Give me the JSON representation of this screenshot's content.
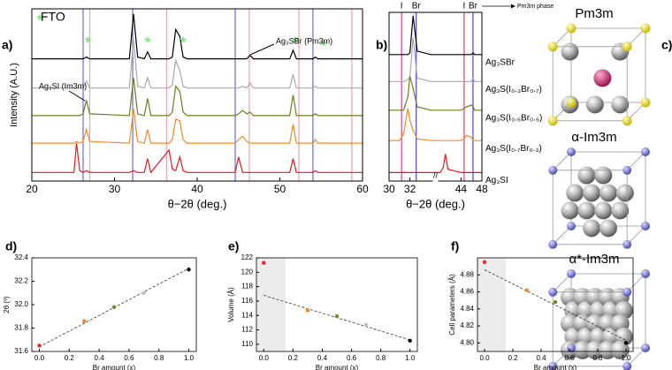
{
  "chart_data": [
    {
      "type": "line",
      "label": "a)",
      "ylabel": "Intensity (A.U.)",
      "xlabel": "θ−2θ (deg.)",
      "xlim": [
        20,
        60
      ],
      "xticks": [
        20,
        30,
        40,
        50,
        60
      ],
      "ylim": [
        0,
        100
      ],
      "x": [
        20,
        25.1,
        25.4,
        25.8,
        26.2,
        26.6,
        27.0,
        31.8,
        32.3,
        32.8,
        33.6,
        34.0,
        34.4,
        36.6,
        37.0,
        37.4,
        37.9,
        38.3,
        38.8,
        44.6,
        45.0,
        45.5,
        46.0,
        46.4,
        46.8,
        51.2,
        51.6,
        52.0,
        54.0,
        54.3,
        54.6,
        60
      ],
      "series": [
        {
          "color": "#000000",
          "values": [
            71,
            71,
            71,
            71,
            71,
            72,
            71,
            71,
            97,
            72,
            71,
            75,
            71,
            71,
            72,
            88,
            84,
            72,
            71,
            71,
            71,
            71,
            71,
            73,
            71,
            71,
            76,
            71,
            71,
            72,
            71,
            71
          ]
        },
        {
          "color": "#a9a9a9",
          "values": [
            54,
            54,
            54,
            54,
            54,
            58,
            54,
            54,
            82,
            55,
            54,
            60,
            54,
            54,
            56,
            70,
            64,
            55,
            54,
            54,
            54,
            55,
            54,
            57,
            54,
            54,
            62,
            54,
            54,
            55,
            54,
            54
          ]
        },
        {
          "color": "#6b7d1a",
          "values": [
            38,
            38,
            38,
            38,
            39,
            47,
            39,
            38,
            60,
            39,
            38,
            48,
            38,
            38,
            40,
            55,
            52,
            40,
            38,
            38,
            39,
            41,
            39,
            40,
            38,
            38,
            50,
            38,
            38,
            39,
            38,
            38
          ]
        },
        {
          "color": "#f08a24",
          "values": [
            22,
            22,
            23,
            22,
            23,
            30,
            23,
            22,
            42,
            23,
            22,
            30,
            22,
            22,
            24,
            36,
            35,
            24,
            22,
            22,
            24,
            26,
            23,
            22,
            22,
            22,
            33,
            22,
            22,
            24,
            22,
            22
          ]
        },
        {
          "color": "#e8161b",
          "values": [
            5,
            5,
            22,
            6,
            5,
            6,
            5,
            5,
            6,
            5,
            5,
            13,
            5,
            18,
            7,
            6,
            14,
            6,
            5,
            5,
            14,
            5,
            5,
            5,
            5,
            5,
            13,
            5,
            5,
            6,
            5,
            5
          ]
        }
      ],
      "vlines": [
        {
          "x": 26.2,
          "color": "#6a6ae0"
        },
        {
          "x": 27.0,
          "color": "#f3a0b0"
        },
        {
          "x": 32.2,
          "color": "#6a6ae0"
        },
        {
          "x": 36.3,
          "color": "#f3a0b0"
        },
        {
          "x": 44.6,
          "color": "#6a6ae0"
        },
        {
          "x": 46.3,
          "color": "#f3a0b0"
        },
        {
          "x": 52.3,
          "color": "#f3a0b0"
        },
        {
          "x": 54.0,
          "color": "#6a6ae0"
        },
        {
          "x": 58.7,
          "color": "#f3a0b0"
        }
      ],
      "markers": {
        "color": "#8ee68e",
        "x": [
          21,
          26.8,
          34,
          38.3,
          51.9,
          55.3
        ],
        "y": [
          95,
          82,
          82,
          82,
          82,
          80
        ]
      },
      "annotations": [
        {
          "text": "FTO",
          "color": "#000000"
        },
        {
          "text": "Ag₃SBr (Pm3m)",
          "color": "#1f3aa0"
        },
        {
          "text": "Ag₃SI (Im3m)",
          "color": "#e8161b"
        }
      ]
    },
    {
      "type": "line",
      "label": "b)",
      "xlabel": "θ−2θ (deg.)",
      "xlim": [
        30,
        48
      ],
      "xbreak": [
        34,
        40
      ],
      "xticks": [
        30,
        32,
        44,
        48
      ],
      "ylim": [
        0,
        100
      ],
      "x": [
        30,
        31.0,
        31.4,
        31.8,
        32.0,
        32.3,
        32.7,
        34,
        40,
        40.6,
        41,
        41.5,
        44,
        44.6,
        45,
        46.0,
        46.3,
        46.6,
        48
      ],
      "series": [
        {
          "name": "Ag₃SBr",
          "color": "#000000",
          "values": [
            75,
            75,
            75,
            75,
            76,
            98,
            77,
            75,
            75,
            75,
            75,
            75,
            75,
            75,
            75,
            75,
            76,
            75,
            75
          ]
        },
        {
          "name": "Ag₃S(I₀.₃Br₀.₇)",
          "color": "#a9a9a9",
          "values": [
            59,
            59,
            59,
            60,
            62,
            85,
            61,
            59,
            59,
            59,
            59,
            59,
            59,
            59,
            59,
            59,
            61,
            59,
            59
          ]
        },
        {
          "name": "Ag₃S(I₀.₅Br₀.₅)",
          "color": "#6b7d1a",
          "values": [
            42,
            42,
            42,
            50,
            62,
            55,
            44,
            42,
            42,
            42,
            42,
            42,
            42,
            43,
            44,
            45,
            44,
            42,
            42
          ]
        },
        {
          "name": "Ag₃S(I₀.₇Br₀.₃)",
          "color": "#f08a24",
          "values": [
            24,
            24,
            28,
            43,
            36,
            30,
            25,
            24,
            24,
            24,
            24,
            24,
            24,
            25,
            27,
            26,
            24,
            24,
            24
          ]
        },
        {
          "name": "Ag₃SI",
          "color": "#e8161b",
          "values": [
            5,
            5,
            5,
            5,
            5,
            5,
            5,
            5,
            5,
            8,
            16,
            7,
            5,
            5,
            5,
            5,
            5,
            5,
            5
          ]
        }
      ],
      "vlines": [
        {
          "x": 31.2,
          "color": "#d6418f",
          "label": "I"
        },
        {
          "x": 32.6,
          "color": "#4848d8",
          "label": "Br"
        },
        {
          "x": 44.6,
          "color": "#d6418f",
          "label": "I"
        },
        {
          "x": 46.3,
          "color": "#4848d8",
          "label": "Br"
        }
      ],
      "annotations": [
        {
          "text": "Pm3m phase",
          "color": "#000000"
        }
      ]
    },
    {
      "type": "structures",
      "label": "c)",
      "titles": [
        "Pm3m",
        "α-Im3m",
        "α*-Im3m"
      ]
    },
    {
      "type": "scatter",
      "label": "d)",
      "xlabel": "Br amount (x)",
      "ylabel": "2θ (º)",
      "xlim": [
        -0.05,
        1.05
      ],
      "xticks": [
        {
          "value": 0,
          "label": "0.0"
        },
        0.2,
        0.4,
        0.6,
        0.8,
        {
          "value": 1,
          "label": "1.0"
        }
      ],
      "ylim": [
        31.6,
        32.4
      ],
      "yticks": [
        31.6,
        31.8,
        {
          "value": 32,
          "label": "32.0"
        },
        32.2,
        32.4
      ],
      "x": [
        0,
        0.3,
        0.5,
        0.7,
        1
      ],
      "values": [
        31.65,
        31.86,
        31.98,
        32.1,
        32.3
      ],
      "colors": [
        "#ff2020",
        "#f08a24",
        "#6b8e23",
        "#c0c0c0",
        "#000000"
      ],
      "fit": {
        "x": [
          0,
          1
        ],
        "y": [
          31.64,
          32.31
        ]
      }
    },
    {
      "type": "scatter",
      "label": "e)",
      "xlabel": "Br amount (x)",
      "ylabel": "Volume (Å)",
      "xlim": [
        -0.05,
        1.05
      ],
      "xticks": [
        {
          "value": 0,
          "label": "0.0"
        },
        0.2,
        0.4,
        0.6,
        0.8,
        {
          "value": 1,
          "label": "1.0"
        }
      ],
      "ylim": [
        109,
        122
      ],
      "yticks": [
        110,
        112,
        114,
        116,
        118,
        120,
        122
      ],
      "x": [
        0,
        0.3,
        0.5,
        0.7,
        1
      ],
      "values": [
        121.3,
        114.7,
        113.9,
        112.7,
        110.5
      ],
      "colors": [
        "#ff2020",
        "#f08a24",
        "#6b8e23",
        "#c0c0c0",
        "#000000"
      ],
      "shade": [
        -0.05,
        0.15
      ],
      "fit": {
        "x": [
          0,
          1
        ],
        "y": [
          116.8,
          110.6
        ]
      }
    },
    {
      "type": "scatter",
      "label": "f)",
      "xlabel": "Br amount (x)",
      "ylabel": "Cell parameters (Å)",
      "xlim": [
        -0.05,
        1.05
      ],
      "xticks": [
        {
          "value": 0,
          "label": "0.0"
        },
        0.2,
        0.4,
        0.6,
        0.8,
        {
          "value": 1,
          "label": "1.0"
        }
      ],
      "ylim": [
        4.79,
        4.9
      ],
      "yticks": [
        {
          "value": 4.8,
          "label": "4.80"
        },
        {
          "value": 4.82,
          "label": "4.82"
        },
        {
          "value": 4.84,
          "label": "4.84"
        },
        {
          "value": 4.86,
          "label": "4.86"
        },
        {
          "value": 4.88,
          "label": "4.88"
        }
      ],
      "x": [
        0,
        0.3,
        0.5,
        0.7,
        1
      ],
      "values": [
        4.895,
        4.862,
        4.848,
        4.833,
        4.8
      ],
      "colors": [
        "#ff2020",
        "#f08a24",
        "#6b8e23",
        "#c0c0c0",
        "#000000"
      ],
      "shade": [
        -0.05,
        0.15
      ],
      "fit": {
        "x": [
          0,
          1
        ],
        "y": [
          4.886,
          4.803
        ]
      }
    }
  ]
}
